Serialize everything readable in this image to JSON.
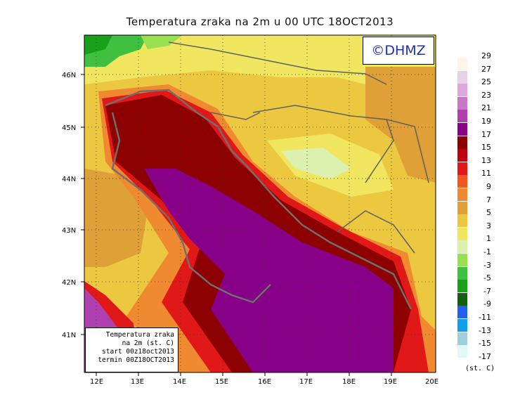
{
  "title": "Temperatura zraka na 2m u 00 UTC 18OCT2013",
  "logo": "©DHMZ",
  "info_box": {
    "line1": "Temperatura zraka",
    "line2": "na 2m (st. C)",
    "line3": "start 00z18oct2013",
    "line4": "termin 00Z18OCT2013"
  },
  "x_ticks": [
    "12E",
    "13E",
    "14E",
    "15E",
    "16E",
    "17E",
    "18E",
    "19E",
    "20E"
  ],
  "y_ticks": [
    "46N",
    "45N",
    "44N",
    "43N",
    "42N",
    "41N"
  ],
  "legend": {
    "unit": "(st. C)",
    "entries": [
      {
        "label": "29",
        "color": "#fff4e8"
      },
      {
        "label": "27",
        "color": "#e8d2e8"
      },
      {
        "label": "25",
        "color": "#dca8dc"
      },
      {
        "label": "23",
        "color": "#c878c8"
      },
      {
        "label": "21",
        "color": "#b040b0"
      },
      {
        "label": "19",
        "color": "#880088"
      },
      {
        "label": "17",
        "color": "#8c0000"
      },
      {
        "label": "15",
        "color": "#c00010"
      },
      {
        "label": "13",
        "color": "#e01818"
      },
      {
        "label": "11",
        "color": "#f05820"
      },
      {
        "label": "9",
        "color": "#f08a30"
      },
      {
        "label": "7",
        "color": "#e0a038"
      },
      {
        "label": "5",
        "color": "#ecc840"
      },
      {
        "label": "3",
        "color": "#f0e660"
      },
      {
        "label": "1",
        "color": "#dcf0b0"
      },
      {
        "label": "-1",
        "color": "#98e050"
      },
      {
        "label": "-3",
        "color": "#40c040"
      },
      {
        "label": "-5",
        "color": "#18a018"
      },
      {
        "label": "-7",
        "color": "#106010"
      },
      {
        "label": "-9",
        "color": "#2060f0"
      },
      {
        "label": "-11",
        "color": "#10a0e8"
      },
      {
        "label": "-13",
        "color": "#a0d0e0"
      },
      {
        "label": "-15",
        "color": "#e0f8f8"
      },
      {
        "label": "-17",
        "color": "#ffffff"
      }
    ]
  },
  "colors": {
    "sea_warm": "#880088",
    "coast_red": "#8c0000",
    "land_yellow": "#f0e660",
    "border_gray": "#707070"
  }
}
